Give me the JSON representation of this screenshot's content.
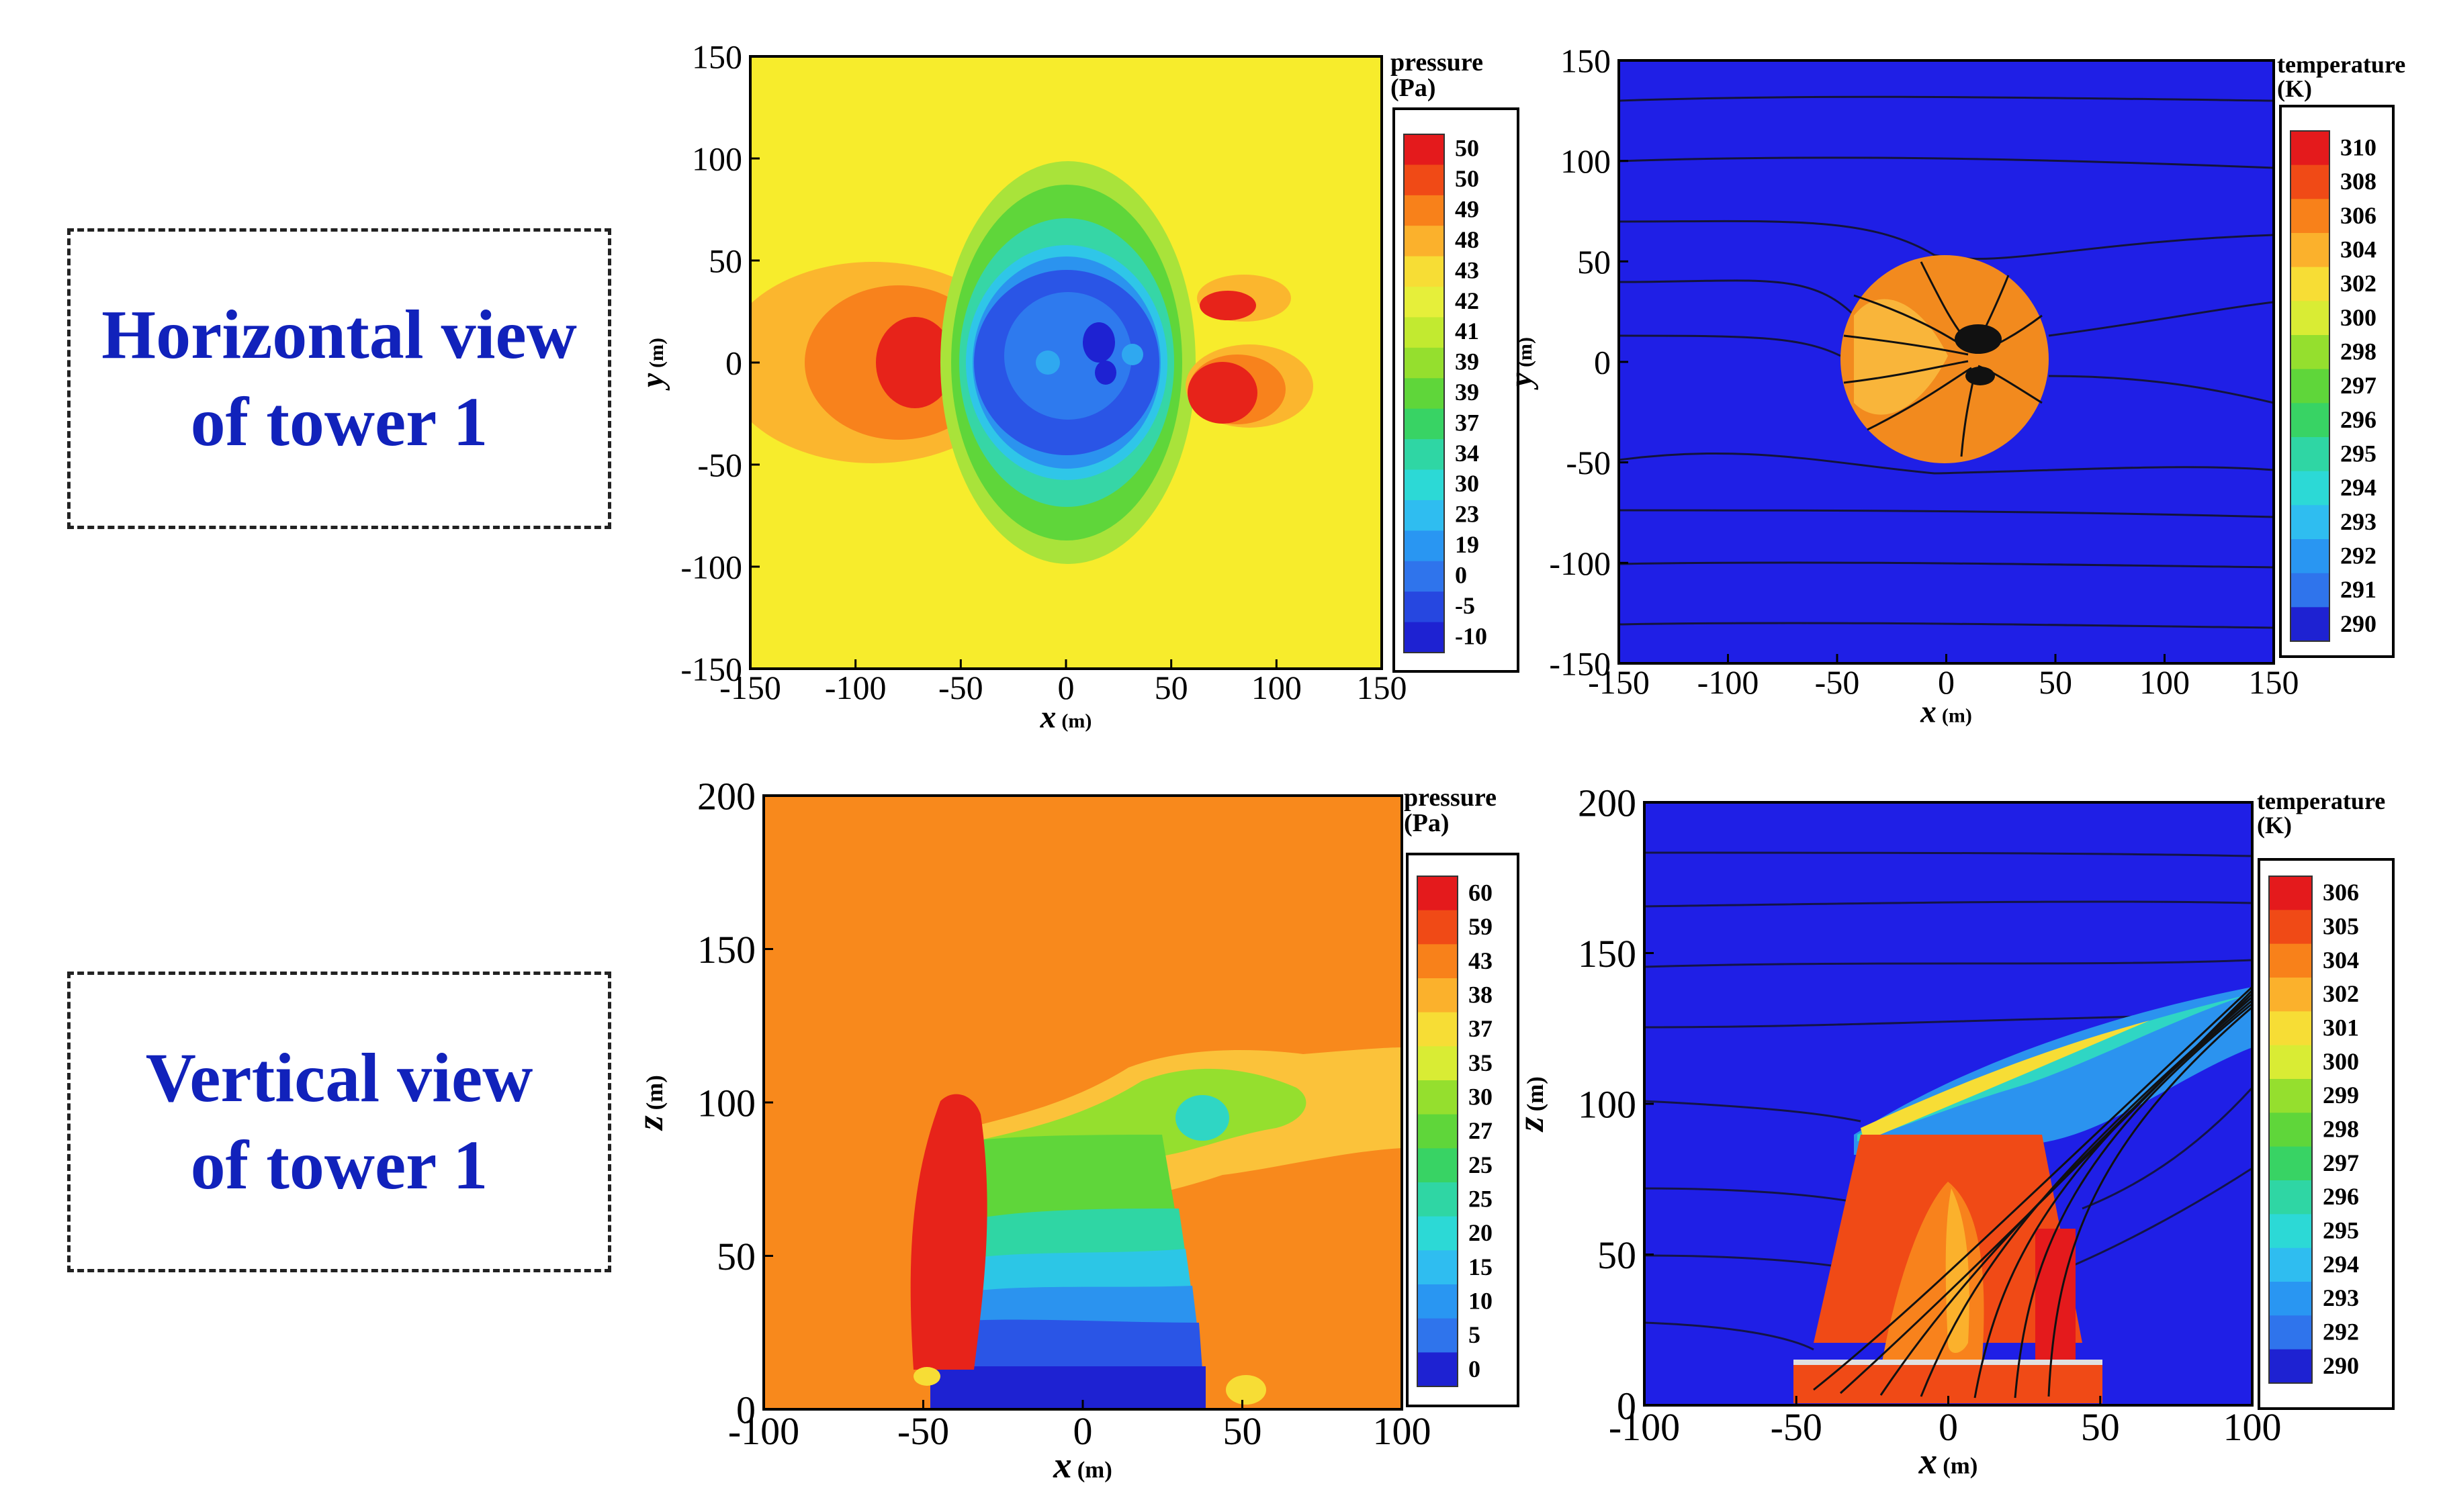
{
  "row_labels": {
    "top_line1": "Horizontal view",
    "top_line2": "of tower 1",
    "bottom_line1": "Vertical view",
    "bottom_line2": "of tower 1"
  },
  "colors": {
    "label_text": "#1122bb",
    "background_blue": "#1f1fe6",
    "stream": "#111111"
  },
  "chart_data": [
    {
      "type": "heatmap",
      "id": "pressure_horizontal",
      "title": "",
      "xlabel": "x",
      "xunit": "(m)",
      "ylabel": "y",
      "yunit": "(m)",
      "xlim": [
        -150,
        150
      ],
      "ylim": [
        -150,
        150
      ],
      "xticks": [
        -150,
        -100,
        -50,
        0,
        50,
        100,
        150
      ],
      "yticks": [
        -150,
        -100,
        -50,
        0,
        50,
        100,
        150
      ],
      "legend": {
        "title_line1": "pressure",
        "title_line2": "(Pa)",
        "levels": [
          "50",
          "50",
          "49",
          "48",
          "43",
          "42",
          "41",
          "39",
          "39",
          "37",
          "34",
          "30",
          "23",
          "19",
          "0",
          "-5",
          "-10"
        ],
        "colors": [
          "#e41a1c",
          "#f04a16",
          "#f8811a",
          "#fbb12c",
          "#f7dd35",
          "#e6ef3a",
          "#c2ea30",
          "#95df2e",
          "#5fd63a",
          "#38d364",
          "#2fd6a4",
          "#2cd9d6",
          "#2fbdf0",
          "#2996f2",
          "#2f74ec",
          "#2647e0",
          "#1e22d2"
        ]
      }
    },
    {
      "type": "heatmap",
      "id": "temperature_horizontal",
      "title": "",
      "xlabel": "x",
      "xunit": "(m)",
      "ylabel": "y",
      "yunit": "(m)",
      "xlim": [
        -150,
        150
      ],
      "ylim": [
        -150,
        150
      ],
      "xticks": [
        -150,
        -100,
        -50,
        0,
        50,
        100,
        150
      ],
      "yticks": [
        -150,
        -100,
        -50,
        0,
        50,
        100,
        150
      ],
      "legend": {
        "title_line1": "temperature",
        "title_line2": "(K)",
        "levels": [
          "310",
          "308",
          "306",
          "304",
          "302",
          "300",
          "298",
          "297",
          "296",
          "295",
          "294",
          "293",
          "292",
          "291",
          "290"
        ],
        "colors": [
          "#e41a1c",
          "#f04a16",
          "#f8811a",
          "#fbb12c",
          "#f7dd35",
          "#d9ec34",
          "#95df2e",
          "#5fd63a",
          "#38d364",
          "#2fd6a4",
          "#2cd9d6",
          "#2fbdf0",
          "#2996f2",
          "#2f74ec",
          "#1e22d2"
        ]
      }
    },
    {
      "type": "heatmap",
      "id": "pressure_vertical",
      "title": "",
      "xlabel": "x",
      "xunit": "(m)",
      "ylabel": "z",
      "yunit": "(m)",
      "xlim": [
        -100,
        100
      ],
      "ylim": [
        0,
        200
      ],
      "xticks": [
        -100,
        -50,
        0,
        50,
        100
      ],
      "yticks": [
        0,
        50,
        100,
        150,
        200
      ],
      "legend": {
        "title_line1": "pressure",
        "title_line2": "(Pa)",
        "levels": [
          "60",
          "59",
          "43",
          "38",
          "37",
          "35",
          "30",
          "27",
          "25",
          "25",
          "20",
          "15",
          "10",
          "5",
          "0"
        ],
        "colors": [
          "#e41a1c",
          "#f04a16",
          "#f8811a",
          "#fbb12c",
          "#f7dd35",
          "#d9ec34",
          "#95df2e",
          "#5fd63a",
          "#38d364",
          "#2fd6a4",
          "#2cd9d6",
          "#2fbdf0",
          "#2996f2",
          "#2f74ec",
          "#1e22d2"
        ]
      }
    },
    {
      "type": "heatmap",
      "id": "temperature_vertical",
      "title": "",
      "xlabel": "x",
      "xunit": "(m)",
      "ylabel": "z",
      "yunit": "(m)",
      "xlim": [
        -100,
        100
      ],
      "ylim": [
        0,
        200
      ],
      "xticks": [
        -100,
        -50,
        0,
        50,
        100
      ],
      "yticks": [
        0,
        50,
        100,
        150,
        200
      ],
      "legend": {
        "title_line1": "temperature",
        "title_line2": "(K)",
        "levels": [
          "306",
          "305",
          "304",
          "302",
          "301",
          "300",
          "299",
          "298",
          "297",
          "296",
          "295",
          "294",
          "293",
          "292",
          "290"
        ],
        "colors": [
          "#e41a1c",
          "#f04a16",
          "#f8811a",
          "#fbb12c",
          "#f7dd35",
          "#d9ec34",
          "#95df2e",
          "#5fd63a",
          "#38d364",
          "#2fd6a4",
          "#2cd9d6",
          "#2fbdf0",
          "#2996f2",
          "#2f74ec",
          "#1e22d2"
        ]
      }
    }
  ]
}
